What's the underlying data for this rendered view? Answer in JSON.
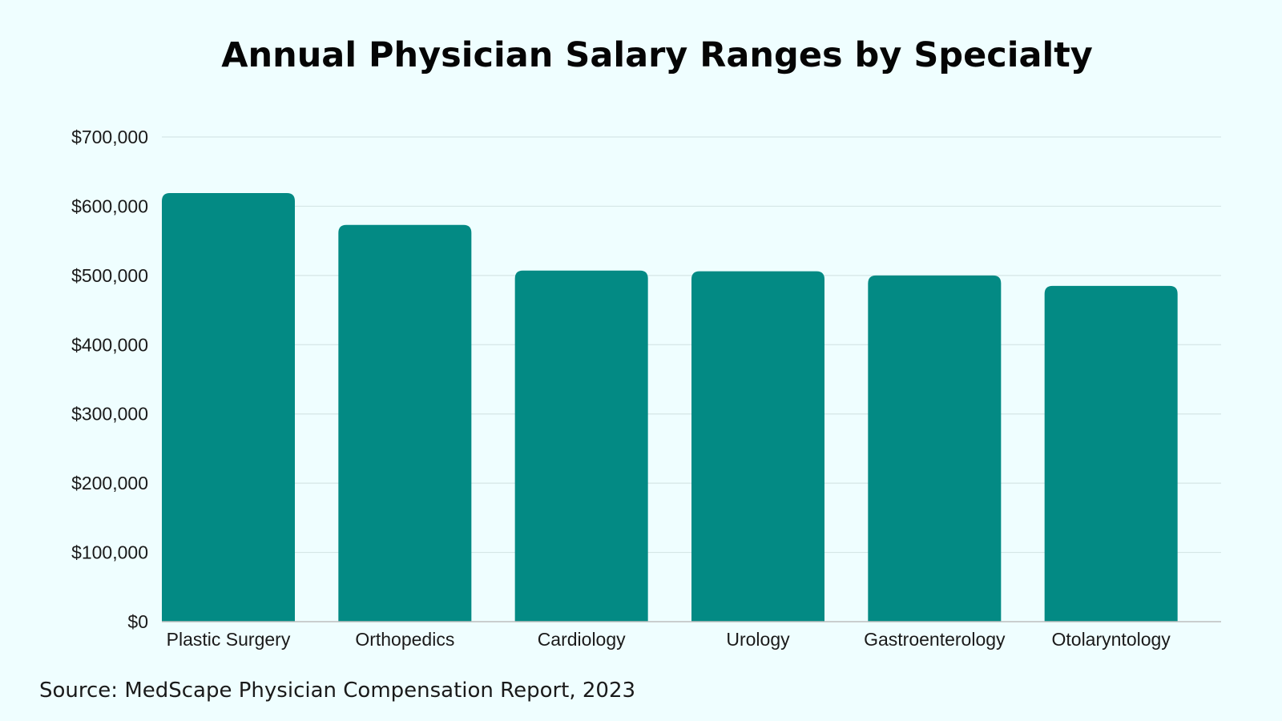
{
  "chart_data": {
    "type": "bar",
    "title": "Annual Physician Salary Ranges by Specialty",
    "categories": [
      "Plastic Surgery",
      "Orthopedics",
      "Cardiology",
      "Urology",
      "Gastroenterology",
      "Otolaryntology"
    ],
    "values": [
      619000,
      573000,
      507000,
      506000,
      500000,
      485000
    ],
    "xlabel": "",
    "ylabel": "",
    "ylim": [
      0,
      700000
    ],
    "yticks": [
      0,
      100000,
      200000,
      300000,
      400000,
      500000,
      600000,
      700000
    ],
    "ytick_labels": [
      "$0",
      "$100,000",
      "$200,000",
      "$300,000",
      "$400,000",
      "$500,000",
      "$600,000",
      "$700,000"
    ],
    "grid": true,
    "legend": "none",
    "bar_color": "#038a84",
    "source": "Source: MedScape Physician Compensation Report, 2023"
  }
}
